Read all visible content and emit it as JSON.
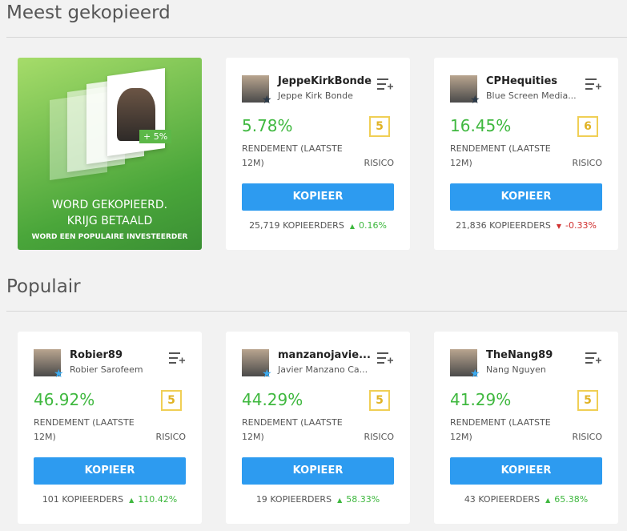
{
  "labels": {
    "return": "RENDEMENT (LAATSTE 12M)",
    "risk": "RISICO",
    "button": "KOPIEER",
    "copiers": "KOPIEERDERS"
  },
  "sections": [
    {
      "title": "Meest gekopieerd",
      "promo": {
        "line1": "WORD GEKOPIEERD.",
        "line2": "KRIJG BETAALD",
        "line3": "WORD EEN POPULAIRE INVESTEERDER",
        "badge": "+ 5%"
      },
      "cards": [
        {
          "username": "JeppeKirkBonde",
          "fullname": "Jeppe Kirk Bonde",
          "gain": "5.78%",
          "risk": "5",
          "copiers": "25,719",
          "change": "0.16%"
        },
        {
          "username": "CPHequities",
          "fullname": "Blue Screen Media...",
          "gain": "16.45%",
          "risk": "6",
          "copiers": "21,836",
          "change": "-0.33%"
        }
      ]
    },
    {
      "title": "Populair",
      "cards": [
        {
          "username": "Robier89",
          "fullname": "Robier Sarofeem",
          "gain": "46.92%",
          "risk": "5",
          "copiers": "101",
          "change": "110.42%"
        },
        {
          "username": "manzanojavie...",
          "fullname": "Javier Manzano Ca...",
          "gain": "44.29%",
          "risk": "5",
          "copiers": "19",
          "change": "58.33%"
        },
        {
          "username": "TheNang89",
          "fullname": "Nang Nguyen",
          "gain": "41.29%",
          "risk": "5",
          "copiers": "43",
          "change": "65.38%"
        }
      ]
    }
  ]
}
